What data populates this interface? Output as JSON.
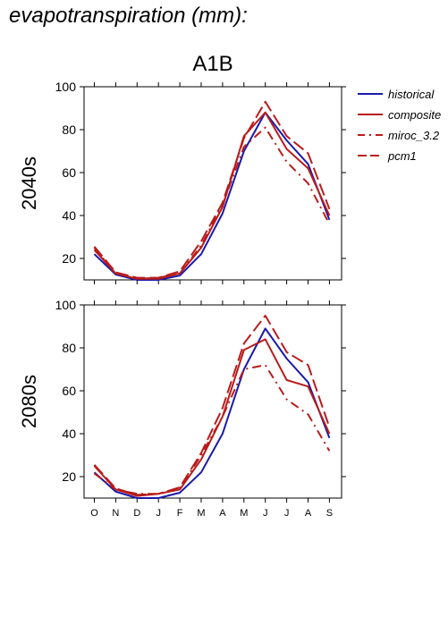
{
  "header": {
    "title": "evapotranspiration (mm):"
  },
  "colors": {
    "historical": "#1a1aaa",
    "composite": "#b81c1c",
    "miroc": "#b81c1c",
    "pcm1": "#b81c1c"
  },
  "chart_data": {
    "type": "line",
    "title": "A1B",
    "categories": [
      "O",
      "N",
      "D",
      "J",
      "F",
      "M",
      "A",
      "M",
      "J",
      "J",
      "A",
      "S"
    ],
    "ylim": [
      10,
      100
    ],
    "yticks": [
      20,
      40,
      60,
      80,
      100
    ],
    "legend": {
      "placement": "right",
      "entries": [
        "historical",
        "composite",
        "miroc_3.2",
        "pcm1"
      ]
    },
    "panels": [
      {
        "label": "2040s",
        "series": [
          {
            "name": "historical",
            "style": "solid",
            "color": "#1a1aaa",
            "values": [
              22,
              12.5,
              10,
              10,
              12,
              22,
              41,
              70,
              88,
              75,
              64,
              38
            ]
          },
          {
            "name": "composite",
            "style": "solid",
            "color": "#b81c1c",
            "values": [
              24,
              13,
              10.5,
              10.5,
              13,
              25,
              44,
              77,
              88,
              71,
              62,
              40
            ]
          },
          {
            "name": "miroc_3.2",
            "style": "dashdot",
            "color": "#b81c1c",
            "values": [
              25,
              13,
              10.5,
              11,
              13,
              26,
              45,
              72,
              81,
              65,
              55,
              36
            ]
          },
          {
            "name": "pcm1",
            "style": "dash",
            "color": "#b81c1c",
            "values": [
              25.5,
              13.5,
              11,
              11,
              14,
              28,
              46,
              76,
              93,
              77,
              69,
              43
            ]
          }
        ]
      },
      {
        "label": "2080s",
        "series": [
          {
            "name": "historical",
            "style": "solid",
            "color": "#1a1aaa",
            "values": [
              22,
              13,
              10,
              10,
              12.5,
              22,
              40,
              70,
              89,
              75,
              64,
              38
            ]
          },
          {
            "name": "composite",
            "style": "solid",
            "color": "#b81c1c",
            "values": [
              25,
              14,
              11,
              12,
              14,
              28,
              48,
              79,
              84,
              65,
              62,
              40
            ]
          },
          {
            "name": "miroc_3.2",
            "style": "dashdot",
            "color": "#b81c1c",
            "values": [
              21.5,
              14,
              12,
              12,
              14.5,
              30,
              48,
              70,
              72,
              56,
              49,
              32
            ]
          },
          {
            "name": "pcm1",
            "style": "dash",
            "color": "#b81c1c",
            "values": [
              25.5,
              14.5,
              11.5,
              12,
              15,
              31,
              52,
              82,
              95,
              78,
              72,
              43
            ]
          }
        ]
      }
    ]
  }
}
